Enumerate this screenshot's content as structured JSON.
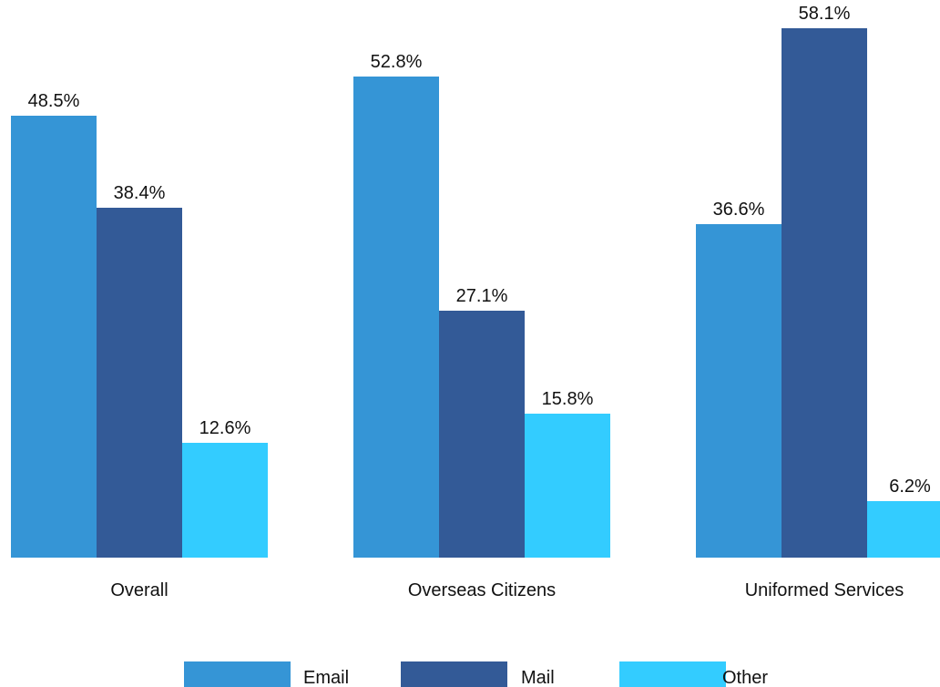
{
  "chart_data": {
    "type": "bar",
    "categories": [
      "Overall",
      "Overseas Citizens",
      "Uniformed Services"
    ],
    "series": [
      {
        "name": "Email",
        "values": [
          48.5,
          52.8,
          36.6
        ],
        "labels": [
          "48.5%",
          "52.8%",
          "36.6%"
        ],
        "color": "#3595D6"
      },
      {
        "name": "Mail",
        "values": [
          38.4,
          27.1,
          58.1
        ],
        "labels": [
          "38.4%",
          "27.1%",
          "58.1%"
        ],
        "color": "#335A97"
      },
      {
        "name": "Other",
        "values": [
          12.6,
          15.8,
          6.2
        ],
        "labels": [
          "12.6%",
          "15.8%",
          "6.2%"
        ],
        "color": "#33CCFF"
      }
    ],
    "ylim": [
      0,
      60
    ],
    "grid": false,
    "legend_position": "bottom",
    "value_format": "percent",
    "title": "",
    "xlabel": "",
    "ylabel": ""
  }
}
